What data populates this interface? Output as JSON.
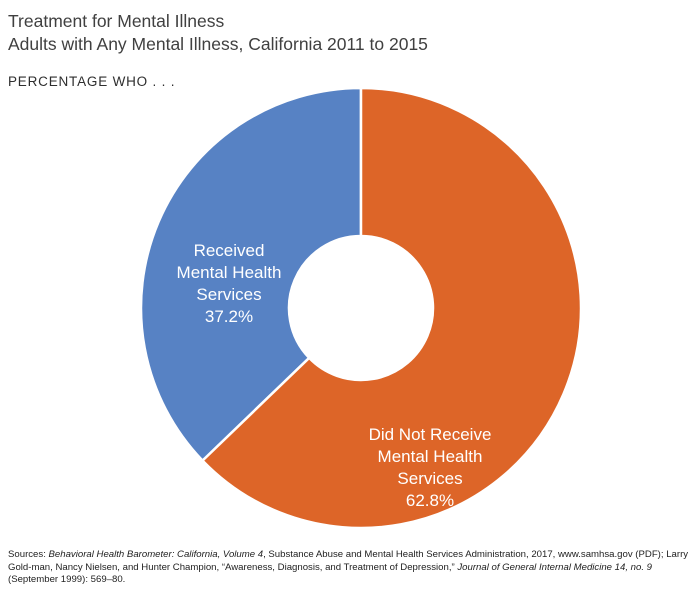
{
  "title": "Treatment for Mental Illness",
  "subtitle": "Adults with Any Mental Illness, California 2011 to 2015",
  "kicker": "PERCENTAGE WHO . . .",
  "chart_data": {
    "type": "pie",
    "donut": true,
    "slices": [
      {
        "label_lines": [
          "Received",
          "Mental Health",
          "Services"
        ],
        "value_text": "37.2%",
        "value": 37.2,
        "color": "#5782c4"
      },
      {
        "label_lines": [
          "Did Not Receive",
          "Mental Health",
          "Services"
        ],
        "value_text": "62.8%",
        "value": 62.8,
        "color": "#dd6528"
      }
    ]
  },
  "source": {
    "prefix": "Sources: ",
    "italic1": "Behavioral Health Barometer: California, Volume 4",
    "mid1": ", Substance Abuse and Mental Health Services Administration, 2017, www.samhsa.gov (PDF); Larry Gold-man, Nancy Nielsen, and Hunter Champion, “Awareness, Diagnosis, and Treatment of Depression,” ",
    "italic2": "Journal of General Internal Medicine 14, no. 9",
    "suffix": " (September 1999): 569–80."
  }
}
